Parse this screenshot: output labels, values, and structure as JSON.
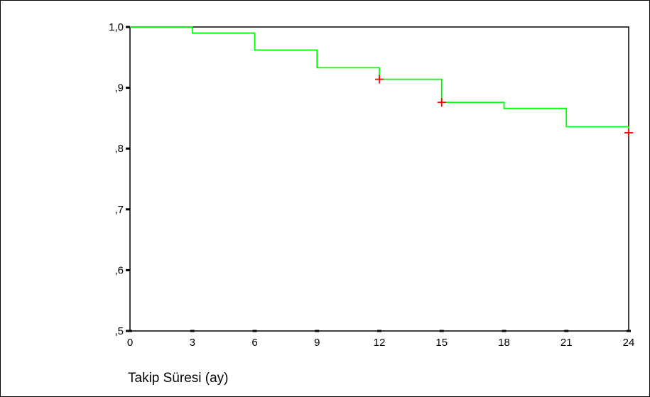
{
  "chart_data": {
    "type": "line",
    "title": "",
    "xlabel": "Takip Süresi (ay)",
    "ylabel": "",
    "xlim": [
      0,
      24
    ],
    "ylim": [
      0.5,
      1.0
    ],
    "x_ticks": [
      0,
      3,
      6,
      9,
      12,
      15,
      18,
      21,
      24
    ],
    "x_tick_labels": [
      "0",
      "3",
      "6",
      "9",
      "12",
      "15",
      "18",
      "21",
      "24"
    ],
    "y_ticks": [
      0.5,
      0.6,
      0.7,
      0.8,
      0.9,
      1.0
    ],
    "y_tick_labels": [
      ",5",
      ",6",
      ",7",
      ",8",
      ",9",
      "1,0"
    ],
    "grid": false,
    "series": [
      {
        "step": true,
        "color": "#00ff00",
        "x": [
          0,
          3,
          6,
          9,
          12,
          15,
          18,
          21,
          24
        ],
        "y": [
          1.0,
          0.99,
          0.962,
          0.933,
          0.914,
          0.876,
          0.866,
          0.836,
          0.826
        ]
      }
    ],
    "censored_points": {
      "color": "#ff0000",
      "marker": "+",
      "x": [
        12,
        15,
        24
      ],
      "y": [
        0.914,
        0.876,
        0.826
      ]
    }
  }
}
